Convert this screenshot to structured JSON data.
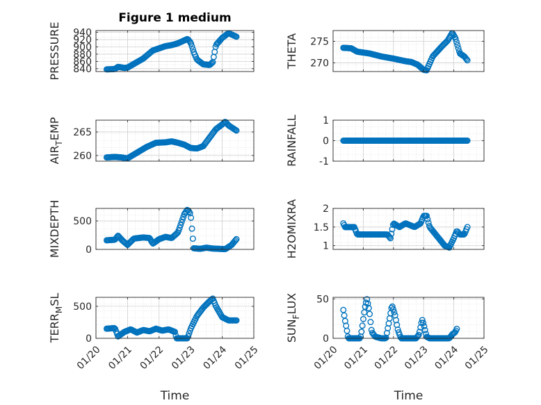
{
  "figure": {
    "title": "Figure 1 medium",
    "marker_color": "#0072BD",
    "axis_color": "#262626",
    "grid_color": "#d9d9d9"
  },
  "chart_data": [
    {
      "id": "pressure",
      "type": "scatter",
      "title": "Figure 1 medium",
      "ylabel": "PRESSURE",
      "ylabel_sub": "",
      "ylabel_suffix": "",
      "xlabel": "",
      "show_xticklabels": false,
      "xlim": [
        0,
        5
      ],
      "ylim": [
        832,
        945
      ],
      "yticks": [
        840,
        860,
        880,
        900,
        920,
        940
      ],
      "yticklabels": [
        "840",
        "860",
        "880",
        "900",
        "920",
        "940"
      ],
      "xticks": [
        0,
        1,
        2,
        3,
        4,
        5
      ],
      "xticklabels": [
        "01/20",
        "01/21",
        "01/22",
        "01/23",
        "01/24",
        "01/25"
      ],
      "grid": true,
      "minor_grid": true,
      "knots": [
        [
          0.34,
          838
        ],
        [
          0.6,
          839
        ],
        [
          0.7,
          845
        ],
        [
          0.9,
          842
        ],
        [
          1.0,
          843
        ],
        [
          1.5,
          868
        ],
        [
          1.8,
          890
        ],
        [
          2.2,
          902
        ],
        [
          2.4,
          905
        ],
        [
          2.6,
          910
        ],
        [
          2.8,
          918
        ],
        [
          2.9,
          922
        ],
        [
          3.0,
          912
        ],
        [
          3.1,
          885
        ],
        [
          3.2,
          865
        ],
        [
          3.4,
          852
        ],
        [
          3.6,
          850
        ],
        [
          3.7,
          858
        ],
        [
          3.8,
          905
        ],
        [
          4.0,
          925
        ],
        [
          4.2,
          938
        ],
        [
          4.45,
          928
        ]
      ]
    },
    {
      "id": "theta",
      "type": "scatter",
      "title": "",
      "ylabel": "THETA",
      "ylabel_sub": "",
      "ylabel_suffix": "",
      "xlabel": "",
      "show_xticklabels": false,
      "xlim": [
        0,
        5
      ],
      "ylim": [
        268,
        277.5
      ],
      "yticks": [
        270,
        275
      ],
      "yticklabels": [
        "270",
        "275"
      ],
      "xticks": [
        0,
        1,
        2,
        3,
        4,
        5
      ],
      "xticklabels": [
        "01/20",
        "01/21",
        "01/22",
        "01/23",
        "01/24",
        "01/25"
      ],
      "grid": true,
      "minor_grid": true,
      "knots": [
        [
          0.34,
          273.5
        ],
        [
          0.6,
          273.4
        ],
        [
          0.8,
          272.6
        ],
        [
          1.2,
          272.2
        ],
        [
          1.6,
          271.5
        ],
        [
          2.0,
          271.0
        ],
        [
          2.4,
          270.4
        ],
        [
          2.6,
          270.2
        ],
        [
          2.8,
          269.6
        ],
        [
          3.0,
          268.4
        ],
        [
          3.1,
          268.3
        ],
        [
          3.3,
          271.5
        ],
        [
          3.6,
          273.8
        ],
        [
          3.8,
          275.2
        ],
        [
          3.95,
          277.0
        ],
        [
          4.05,
          275.8
        ],
        [
          4.2,
          272.2
        ],
        [
          4.35,
          271.5
        ],
        [
          4.45,
          270.6
        ]
      ]
    },
    {
      "id": "airtemp",
      "type": "scatter",
      "title": "",
      "ylabel": "AIR",
      "ylabel_sub": "T",
      "ylabel_suffix": "EMP",
      "xlabel": "",
      "show_xticklabels": false,
      "xlim": [
        0,
        5
      ],
      "ylim": [
        258.8,
        267.5
      ],
      "yticks": [
        260,
        265
      ],
      "yticklabels": [
        "260",
        "265"
      ],
      "xticks": [
        0,
        1,
        2,
        3,
        4,
        5
      ],
      "xticklabels": [
        "01/20",
        "01/21",
        "01/22",
        "01/23",
        "01/24",
        "01/25"
      ],
      "grid": true,
      "minor_grid": true,
      "knots": [
        [
          0.34,
          259.6
        ],
        [
          0.6,
          259.7
        ],
        [
          0.8,
          259.6
        ],
        [
          1.0,
          259.4
        ],
        [
          1.3,
          260.6
        ],
        [
          1.6,
          261.8
        ],
        [
          1.9,
          262.7
        ],
        [
          2.2,
          262.8
        ],
        [
          2.4,
          263.0
        ],
        [
          2.6,
          262.7
        ],
        [
          2.8,
          262.3
        ],
        [
          3.0,
          261.6
        ],
        [
          3.2,
          261.5
        ],
        [
          3.4,
          262.0
        ],
        [
          3.6,
          263.8
        ],
        [
          3.8,
          265.6
        ],
        [
          4.0,
          266.6
        ],
        [
          4.1,
          267.2
        ],
        [
          4.2,
          266.4
        ],
        [
          4.45,
          265.3
        ]
      ]
    },
    {
      "id": "rainfall",
      "type": "scatter",
      "title": "",
      "ylabel": "RAINFALL",
      "ylabel_sub": "",
      "ylabel_suffix": "",
      "xlabel": "",
      "show_xticklabels": false,
      "xlim": [
        0,
        5
      ],
      "ylim": [
        -1,
        1
      ],
      "yticks": [
        -1,
        0,
        1
      ],
      "yticklabels": [
        "-1",
        "0",
        "1"
      ],
      "xticks": [
        0,
        1,
        2,
        3,
        4,
        5
      ],
      "xticklabels": [
        "01/20",
        "01/21",
        "01/22",
        "01/23",
        "01/24",
        "01/25"
      ],
      "grid": true,
      "minor_grid": true,
      "knots": [
        [
          0.34,
          0
        ],
        [
          4.45,
          0
        ]
      ]
    },
    {
      "id": "mixdepth",
      "type": "scatter",
      "title": "",
      "ylabel": "MIXDEPTH",
      "ylabel_sub": "",
      "ylabel_suffix": "",
      "xlabel": "",
      "show_xticklabels": false,
      "xlim": [
        0,
        5
      ],
      "ylim": [
        0,
        720
      ],
      "yticks": [
        0,
        500
      ],
      "yticklabels": [
        "0",
        "500"
      ],
      "xticks": [
        0,
        1,
        2,
        3,
        4,
        5
      ],
      "xticklabels": [
        "01/20",
        "01/21",
        "01/22",
        "01/23",
        "01/24",
        "01/25"
      ],
      "grid": true,
      "minor_grid": true,
      "knots": [
        [
          0.34,
          160
        ],
        [
          0.6,
          170
        ],
        [
          0.7,
          240
        ],
        [
          0.85,
          150
        ],
        [
          1.0,
          80
        ],
        [
          1.2,
          190
        ],
        [
          1.5,
          210
        ],
        [
          1.7,
          200
        ],
        [
          1.8,
          100
        ],
        [
          2.0,
          180
        ],
        [
          2.2,
          220
        ],
        [
          2.4,
          200
        ],
        [
          2.6,
          300
        ],
        [
          2.7,
          460
        ],
        [
          2.8,
          620
        ],
        [
          2.9,
          700
        ],
        [
          3.0,
          620
        ],
        [
          3.05,
          300
        ],
        [
          3.1,
          20
        ],
        [
          3.3,
          10
        ],
        [
          3.5,
          30
        ],
        [
          3.7,
          15
        ],
        [
          3.9,
          10
        ],
        [
          4.1,
          5
        ],
        [
          4.3,
          80
        ],
        [
          4.45,
          180
        ]
      ]
    },
    {
      "id": "h2omixra",
      "type": "scatter",
      "title": "",
      "ylabel": "H2OMIXRA",
      "ylabel_sub": "",
      "ylabel_suffix": "",
      "xlabel": "",
      "show_xticklabels": false,
      "xlim": [
        0,
        5
      ],
      "ylim": [
        0.9,
        2.0
      ],
      "yticks": [
        1,
        1.5,
        2
      ],
      "yticklabels": [
        "1",
        "1.5",
        "2"
      ],
      "xticks": [
        0,
        1,
        2,
        3,
        4,
        5
      ],
      "xticklabels": [
        "01/20",
        "01/21",
        "01/22",
        "01/23",
        "01/24",
        "01/25"
      ],
      "grid": true,
      "minor_grid": true,
      "knots": [
        [
          0.34,
          1.6
        ],
        [
          0.4,
          1.5
        ],
        [
          0.7,
          1.5
        ],
        [
          0.8,
          1.3
        ],
        [
          1.8,
          1.3
        ],
        [
          1.9,
          1.2
        ],
        [
          2.0,
          1.6
        ],
        [
          2.2,
          1.5
        ],
        [
          2.4,
          1.6
        ],
        [
          2.7,
          1.5
        ],
        [
          2.9,
          1.6
        ],
        [
          3.0,
          1.8
        ],
        [
          3.1,
          1.8
        ],
        [
          3.2,
          1.5
        ],
        [
          3.5,
          1.2
        ],
        [
          3.7,
          1.0
        ],
        [
          3.85,
          0.95
        ],
        [
          4.0,
          1.2
        ],
        [
          4.1,
          1.4
        ],
        [
          4.2,
          1.3
        ],
        [
          4.35,
          1.3
        ],
        [
          4.45,
          1.5
        ]
      ]
    },
    {
      "id": "terrmsl",
      "type": "scatter",
      "title": "",
      "ylabel": "TERR",
      "ylabel_sub": "M",
      "ylabel_suffix": "SL",
      "xlabel": "Time",
      "show_xticklabels": true,
      "xlim": [
        0,
        5
      ],
      "ylim": [
        0,
        640
      ],
      "yticks": [
        0,
        500
      ],
      "yticklabels": [
        "0",
        "500"
      ],
      "xticks": [
        0,
        1,
        2,
        3,
        4,
        5
      ],
      "xticklabels": [
        "01/20",
        "01/21",
        "01/22",
        "01/23",
        "01/24",
        "01/25"
      ],
      "grid": true,
      "minor_grid": true,
      "knots": [
        [
          0.34,
          150
        ],
        [
          0.6,
          160
        ],
        [
          0.7,
          30
        ],
        [
          0.9,
          100
        ],
        [
          1.1,
          140
        ],
        [
          1.3,
          90
        ],
        [
          1.5,
          130
        ],
        [
          1.7,
          110
        ],
        [
          1.9,
          150
        ],
        [
          2.1,
          120
        ],
        [
          2.3,
          140
        ],
        [
          2.5,
          100
        ],
        [
          2.55,
          0
        ],
        [
          2.9,
          0
        ],
        [
          3.0,
          150
        ],
        [
          3.2,
          350
        ],
        [
          3.4,
          480
        ],
        [
          3.6,
          580
        ],
        [
          3.7,
          620
        ],
        [
          3.8,
          500
        ],
        [
          4.0,
          330
        ],
        [
          4.2,
          280
        ],
        [
          4.45,
          280
        ]
      ]
    },
    {
      "id": "sunflux",
      "type": "scatter",
      "title": "",
      "ylabel": "SUN",
      "ylabel_sub": "F",
      "ylabel_suffix": "LUX",
      "xlabel": "Time",
      "show_xticklabels": true,
      "xlim": [
        0,
        5
      ],
      "ylim": [
        0,
        52
      ],
      "yticks": [
        0,
        50
      ],
      "yticklabels": [
        "0",
        "50"
      ],
      "xticks": [
        0,
        1,
        2,
        3,
        4,
        5
      ],
      "xticklabels": [
        "01/20",
        "01/21",
        "01/22",
        "01/23",
        "01/24",
        "01/25"
      ],
      "grid": true,
      "minor_grid": true,
      "knots": [
        [
          0.34,
          36
        ],
        [
          0.4,
          22
        ],
        [
          0.45,
          12
        ],
        [
          0.5,
          0
        ],
        [
          0.9,
          0
        ],
        [
          0.95,
          10
        ],
        [
          1.05,
          38
        ],
        [
          1.12,
          50
        ],
        [
          1.2,
          35
        ],
        [
          1.28,
          8
        ],
        [
          1.4,
          2
        ],
        [
          1.6,
          0
        ],
        [
          1.75,
          0
        ],
        [
          1.85,
          20
        ],
        [
          1.95,
          42
        ],
        [
          2.05,
          30
        ],
        [
          2.15,
          10
        ],
        [
          2.25,
          0
        ],
        [
          2.75,
          0
        ],
        [
          2.85,
          5
        ],
        [
          2.95,
          24
        ],
        [
          3.0,
          18
        ],
        [
          3.1,
          2
        ],
        [
          3.2,
          0
        ],
        [
          3.85,
          0
        ],
        [
          3.95,
          5
        ],
        [
          4.05,
          8
        ],
        [
          4.1,
          12
        ]
      ]
    }
  ]
}
